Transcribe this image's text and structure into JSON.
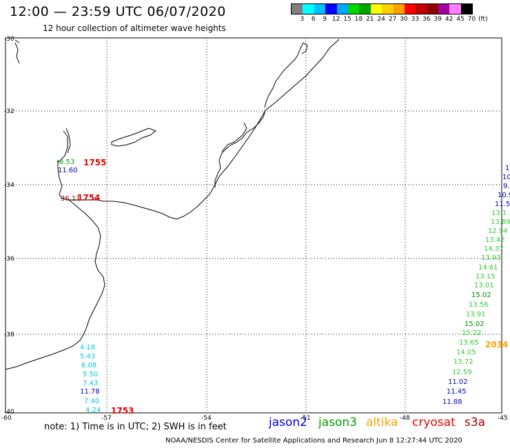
{
  "header": {
    "title": "12:00 — 23:59 UTC 06/07/2020",
    "subtitle": "12 hour collection of altimeter wave heights"
  },
  "legend": {
    "colors": [
      "#808080",
      "#00ffff",
      "#00c0ff",
      "#0000ff",
      "#00a8ff",
      "#00d800",
      "#00a800",
      "#ffff00",
      "#ffd000",
      "#ffa000",
      "#ff0000",
      "#c00000",
      "#900000",
      "#a000a0",
      "#ff80ff",
      "#000000"
    ],
    "labels": [
      "3",
      "6",
      "9",
      "12",
      "15",
      "18",
      "21",
      "24",
      "27",
      "30",
      "33",
      "36",
      "39",
      "42",
      "45",
      "70",
      "(ft)"
    ]
  },
  "axes": {
    "lat_labels": [
      "-30",
      "-32",
      "-34",
      "-36",
      "-38",
      "-40"
    ],
    "lon_labels": [
      "-60",
      "-57",
      "-54",
      "-51",
      "-48",
      "-45"
    ]
  },
  "labels": {
    "note": "note: 1) Time is in UTC; 2) SWH is in feet",
    "credit": "NOAA/NESDIS Center for Satellite Applications and Research   Jun  8 12:27:44 UTC 2020"
  },
  "satellites": [
    {
      "name": "jason2",
      "color": "#0000e0"
    },
    {
      "name": "jason3",
      "color": "#00a000"
    },
    {
      "name": "altika",
      "color": "#ffa000"
    },
    {
      "name": "cryosat",
      "color": "#e60000"
    },
    {
      "name": "s3a",
      "color": "#a00000"
    }
  ],
  "pass_times": [
    {
      "text": "1755",
      "color": "#e60000"
    },
    {
      "text": "1754",
      "color": "#e60000"
    },
    {
      "text": "1753",
      "color": "#e60000"
    },
    {
      "text": "2034",
      "color": "#ffa000"
    }
  ],
  "values": [
    {
      "text": "8.53",
      "color": "#00a000"
    },
    {
      "text": "11.60",
      "color": "#0000c0"
    },
    {
      "text": "36.11",
      "color": "#a00000"
    },
    {
      "text": "4.18",
      "color": "#00c8e0"
    },
    {
      "text": "5.43",
      "color": "#00c8e0"
    },
    {
      "text": "6.08",
      "color": "#00c8e0"
    },
    {
      "text": "5.50",
      "color": "#00c8e0"
    },
    {
      "text": "7.43",
      "color": "#00c8e0"
    },
    {
      "text": "11.78",
      "color": "#0000c0"
    },
    {
      "text": "7.40",
      "color": "#00c8e0"
    },
    {
      "text": "4.24",
      "color": "#00c8e0"
    },
    {
      "text": "1(",
      "color": "#0000c0"
    },
    {
      "text": "10",
      "color": "#0000c0"
    },
    {
      "text": "9.",
      "color": "#0000c0"
    },
    {
      "text": "10.9",
      "color": "#0000c0"
    },
    {
      "text": "11.5",
      "color": "#0000c0"
    },
    {
      "text": "13.1",
      "color": "#33cc33"
    },
    {
      "text": "13.89",
      "color": "#33cc33"
    },
    {
      "text": "12.94",
      "color": "#33cc33"
    },
    {
      "text": "13.42",
      "color": "#33cc33"
    },
    {
      "text": "14.37",
      "color": "#33cc33"
    },
    {
      "text": "13.93",
      "color": "#33cc33"
    },
    {
      "text": "14.61",
      "color": "#33cc33"
    },
    {
      "text": "13.15",
      "color": "#33cc33"
    },
    {
      "text": "13.01",
      "color": "#33cc33"
    },
    {
      "text": "15.02",
      "color": "#008800"
    },
    {
      "text": "13.56",
      "color": "#33cc33"
    },
    {
      "text": "13.91",
      "color": "#33cc33"
    },
    {
      "text": "15.02",
      "color": "#008800"
    },
    {
      "text": "15.22",
      "color": "#33cc33"
    },
    {
      "text": "13.65",
      "color": "#33cc33"
    },
    {
      "text": "14.05",
      "color": "#33cc33"
    },
    {
      "text": "13.72",
      "color": "#33cc33"
    },
    {
      "text": "12.59",
      "color": "#33cc33"
    },
    {
      "text": "11.02",
      "color": "#0000c0"
    },
    {
      "text": "11.45",
      "color": "#0000c0"
    },
    {
      "text": "11.88",
      "color": "#0000c0"
    }
  ]
}
